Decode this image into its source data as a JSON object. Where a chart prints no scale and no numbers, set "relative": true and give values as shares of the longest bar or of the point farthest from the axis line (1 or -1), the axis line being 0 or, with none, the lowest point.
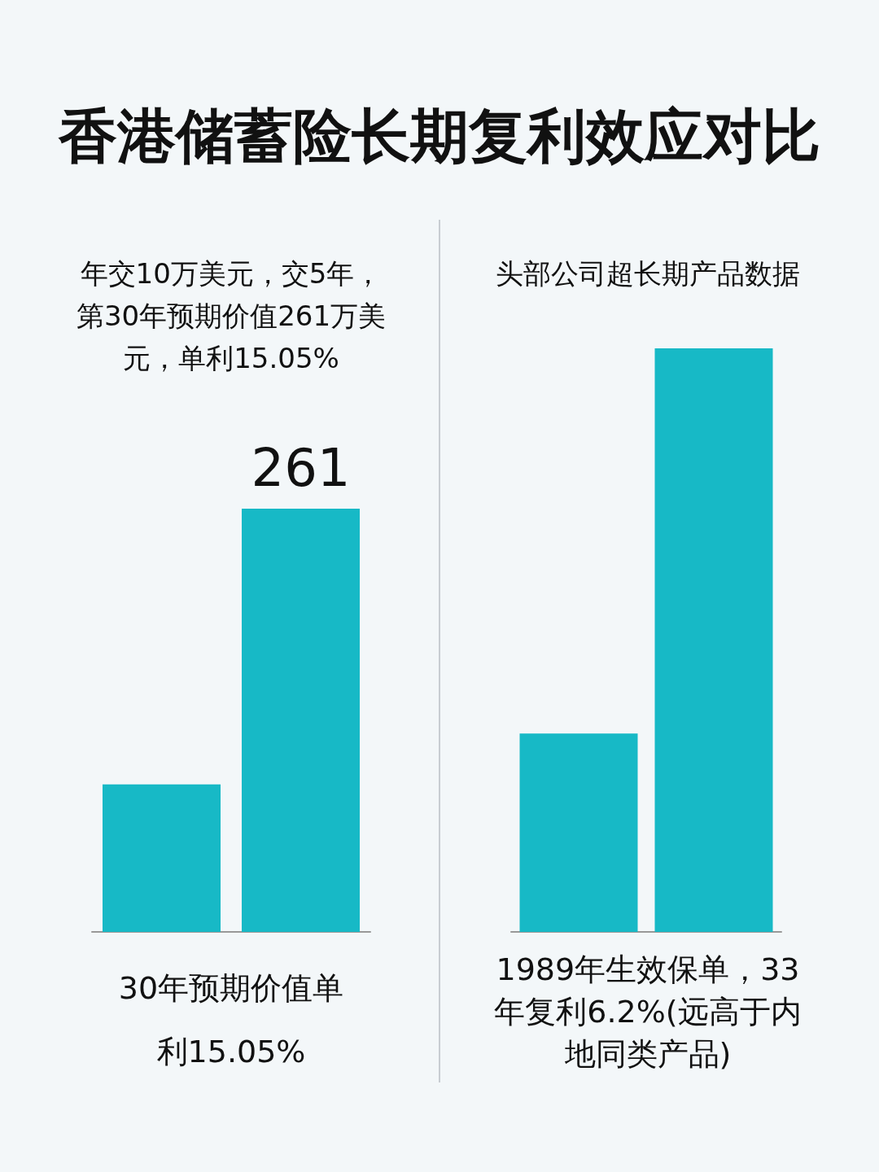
{
  "chart_data": [
    {
      "type": "bar",
      "title": "香港储蓄险长期复利效应对比",
      "subtitle": "年交10万美元，交5年，第30年预期价值261万美元，单利15.05%",
      "categories": [
        null,
        null
      ],
      "tick_labels": false,
      "series": [
        {
          "color": "#17b9c6",
          "values": [
            91,
            261
          ],
          "value_labels": [
            null,
            "261"
          ]
        }
      ],
      "annotations": [
        "30年预期价值单利15.05%"
      ]
    },
    {
      "type": "bar",
      "subtitle": "头部公司超长期产品数据",
      "categories": [
        null,
        null
      ],
      "relative": true,
      "series": [
        {
          "color": "#17b9c6",
          "values": [
            0.34,
            1
          ]
        }
      ],
      "annotations": [
        "1989年生效保单，33年复利6.2%(远高于内地同类产品)"
      ]
    }
  ]
}
